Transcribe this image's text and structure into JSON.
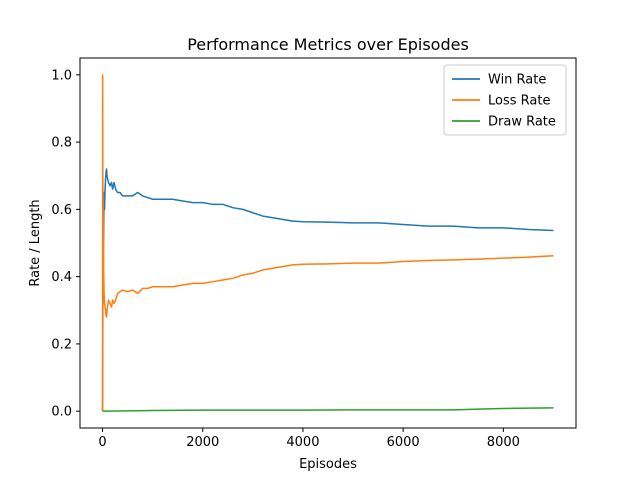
{
  "chart_data": {
    "type": "line",
    "title": "Performance Metrics over Episodes",
    "xlabel": "Episodes",
    "ylabel": "Rate / Length",
    "xlim": [
      -450,
      9450
    ],
    "ylim": [
      -0.05,
      1.05
    ],
    "xticks": [
      0,
      2000,
      4000,
      6000,
      8000
    ],
    "xtick_labels": [
      "0",
      "2000",
      "4000",
      "6000",
      "8000"
    ],
    "yticks": [
      0.0,
      0.2,
      0.4,
      0.6,
      0.8,
      1.0
    ],
    "ytick_labels": [
      "0.0",
      "0.2",
      "0.4",
      "0.6",
      "0.8",
      "1.0"
    ],
    "grid": false,
    "legend_position": "top-right",
    "series": [
      {
        "name": "Win Rate",
        "color": "#1f77b4",
        "x": [
          0,
          5,
          10,
          15,
          20,
          30,
          40,
          50,
          60,
          70,
          80,
          90,
          100,
          120,
          150,
          180,
          200,
          230,
          260,
          300,
          350,
          400,
          500,
          600,
          700,
          800,
          900,
          1000,
          1200,
          1400,
          1600,
          1800,
          2000,
          2200,
          2400,
          2600,
          2800,
          3000,
          3200,
          3400,
          3600,
          3800,
          4000,
          4500,
          5000,
          5500,
          6000,
          6500,
          7000,
          7500,
          8000,
          8500,
          9000
        ],
        "y": [
          0.0,
          0.3,
          0.35,
          0.4,
          0.5,
          0.65,
          0.6,
          0.66,
          0.69,
          0.71,
          0.72,
          0.7,
          0.69,
          0.68,
          0.67,
          0.68,
          0.66,
          0.68,
          0.66,
          0.65,
          0.65,
          0.64,
          0.64,
          0.64,
          0.65,
          0.64,
          0.635,
          0.63,
          0.63,
          0.63,
          0.625,
          0.62,
          0.62,
          0.615,
          0.615,
          0.605,
          0.6,
          0.59,
          0.58,
          0.575,
          0.57,
          0.565,
          0.563,
          0.562,
          0.56,
          0.56,
          0.555,
          0.55,
          0.55,
          0.545,
          0.545,
          0.54,
          0.537
        ]
      },
      {
        "name": "Loss Rate",
        "color": "#ff7f0e",
        "x": [
          0,
          2,
          5,
          10,
          15,
          20,
          30,
          40,
          50,
          60,
          70,
          80,
          90,
          100,
          120,
          150,
          180,
          200,
          230,
          260,
          300,
          350,
          400,
          500,
          600,
          700,
          800,
          900,
          1000,
          1200,
          1400,
          1600,
          1800,
          2000,
          2200,
          2400,
          2600,
          2800,
          3000,
          3200,
          3400,
          3600,
          3800,
          4000,
          4500,
          5000,
          5500,
          6000,
          6500,
          7000,
          7500,
          8000,
          8500,
          9000
        ],
        "y": [
          0.0,
          1.0,
          0.7,
          0.6,
          0.55,
          0.45,
          0.35,
          0.32,
          0.31,
          0.3,
          0.285,
          0.28,
          0.3,
          0.31,
          0.33,
          0.32,
          0.31,
          0.33,
          0.32,
          0.33,
          0.35,
          0.355,
          0.36,
          0.355,
          0.36,
          0.35,
          0.365,
          0.365,
          0.37,
          0.37,
          0.37,
          0.375,
          0.38,
          0.38,
          0.385,
          0.39,
          0.395,
          0.405,
          0.41,
          0.42,
          0.425,
          0.43,
          0.435,
          0.437,
          0.438,
          0.44,
          0.44,
          0.445,
          0.448,
          0.45,
          0.452,
          0.455,
          0.458,
          0.462
        ]
      },
      {
        "name": "Draw Rate",
        "color": "#2ca02c",
        "x": [
          0,
          500,
          1000,
          2000,
          3000,
          4000,
          5000,
          6000,
          7000,
          7500,
          8000,
          8500,
          9000
        ],
        "y": [
          0.0,
          0.001,
          0.002,
          0.003,
          0.003,
          0.003,
          0.004,
          0.004,
          0.004,
          0.006,
          0.008,
          0.009,
          0.01
        ]
      }
    ]
  }
}
